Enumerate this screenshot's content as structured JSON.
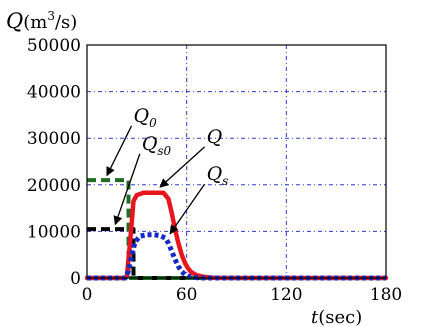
{
  "chart_data": {
    "type": "line",
    "xlabel": {
      "symbol": "t",
      "unit": "(sec)"
    },
    "ylabel": {
      "symbol": "Q",
      "unit_base": "(m",
      "unit_sup": "3",
      "unit_tail": "/s)"
    },
    "xlim": [
      0,
      180
    ],
    "ylim": [
      0,
      50000
    ],
    "x_ticks": [
      0,
      60,
      120,
      180
    ],
    "y_ticks": [
      0,
      10000,
      20000,
      30000,
      40000,
      50000
    ],
    "grid": true,
    "series": [
      {
        "name": "Q",
        "label_symbol": "Q",
        "label_sub": "",
        "color": "#e8141e",
        "style": "solid",
        "x": [
          0,
          22,
          24,
          26,
          28,
          30,
          34,
          40,
          46,
          49,
          51,
          53,
          55,
          57,
          59,
          61,
          63,
          66,
          70,
          75,
          80,
          85,
          180
        ],
        "y": [
          0,
          0,
          300,
          8000,
          16500,
          17800,
          18300,
          18300,
          18300,
          17000,
          14000,
          10500,
          7500,
          5000,
          3200,
          2000,
          1200,
          600,
          250,
          80,
          20,
          0,
          0
        ]
      },
      {
        "name": "Qs",
        "label_symbol": "Q",
        "label_sub": "s",
        "color": "#1428c8",
        "style": "dotted",
        "x": [
          0,
          23,
          25,
          27,
          29,
          32,
          36,
          40,
          44,
          47,
          49,
          51,
          53,
          55,
          57,
          59,
          62,
          66,
          70,
          180
        ],
        "y": [
          0,
          0,
          1500,
          5000,
          7800,
          9000,
          9300,
          9300,
          9100,
          8600,
          7500,
          5800,
          4000,
          2500,
          1400,
          700,
          250,
          60,
          0,
          0
        ]
      },
      {
        "name": "Q0",
        "label_symbol": "Q",
        "label_sub": "0",
        "color": "#1e6e28",
        "style": "dashed",
        "x": [
          0,
          25,
          25,
          180
        ],
        "y": [
          21000,
          21000,
          0,
          0
        ]
      },
      {
        "name": "Qs0",
        "label_symbol": "Q",
        "label_sub": "s0",
        "color": "#000000",
        "style": "dashed",
        "x": [
          0,
          28,
          28,
          180
        ],
        "y": [
          10500,
          10500,
          0,
          0
        ]
      }
    ],
    "annotations": [
      {
        "series": "Q0",
        "symbol": "Q",
        "sub": "0",
        "text_x": 28,
        "text_y": 33500,
        "point_x": 12,
        "point_y": 22000
      },
      {
        "series": "Qs0",
        "symbol": "Q",
        "sub": "s0",
        "text_x": 33,
        "text_y": 27500,
        "point_x": 17,
        "point_y": 11500
      },
      {
        "series": "Q",
        "symbol": "Q",
        "sub": "",
        "text_x": 72,
        "text_y": 29000,
        "point_x": 44,
        "point_y": 19500
      },
      {
        "series": "Qs",
        "symbol": "Q",
        "sub": "s",
        "text_x": 72,
        "text_y": 21000,
        "point_x": 50,
        "point_y": 9500
      }
    ]
  }
}
